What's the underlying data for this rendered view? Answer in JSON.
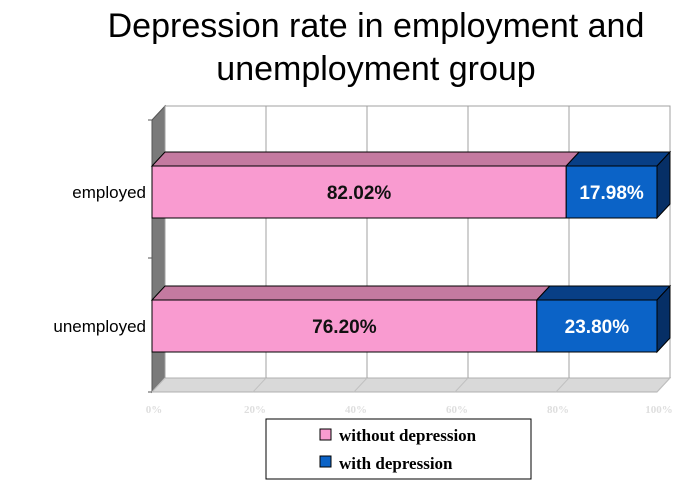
{
  "chart_data": {
    "type": "bar",
    "orientation": "horizontal",
    "stacked": true,
    "percent_stacked": true,
    "three_d": true,
    "title": [
      "Depression rate in employment and",
      "unemployment group"
    ],
    "categories": [
      "employed",
      "unemployed"
    ],
    "series": [
      {
        "name": "without depression",
        "values": [
          82.02,
          76.2
        ],
        "labels": [
          "82.02%",
          "76.20%"
        ],
        "color": "#f99bd0"
      },
      {
        "name": "with depression",
        "values": [
          17.98,
          23.8
        ],
        "labels": [
          "17.98%",
          "23.80%"
        ],
        "color": "#0b63c7"
      }
    ],
    "x_ticks": [
      "0%",
      "20%",
      "40%",
      "60%",
      "80%",
      "100%"
    ],
    "xlim": [
      0,
      100
    ],
    "grid": true,
    "legend_position": "bottom"
  },
  "colors": {
    "grid": "#a0a0a0",
    "wall_side": "#7a7a7a",
    "floor": "#d9d9d9",
    "pink_label": "#111111",
    "blue_label": "#ffffff"
  }
}
